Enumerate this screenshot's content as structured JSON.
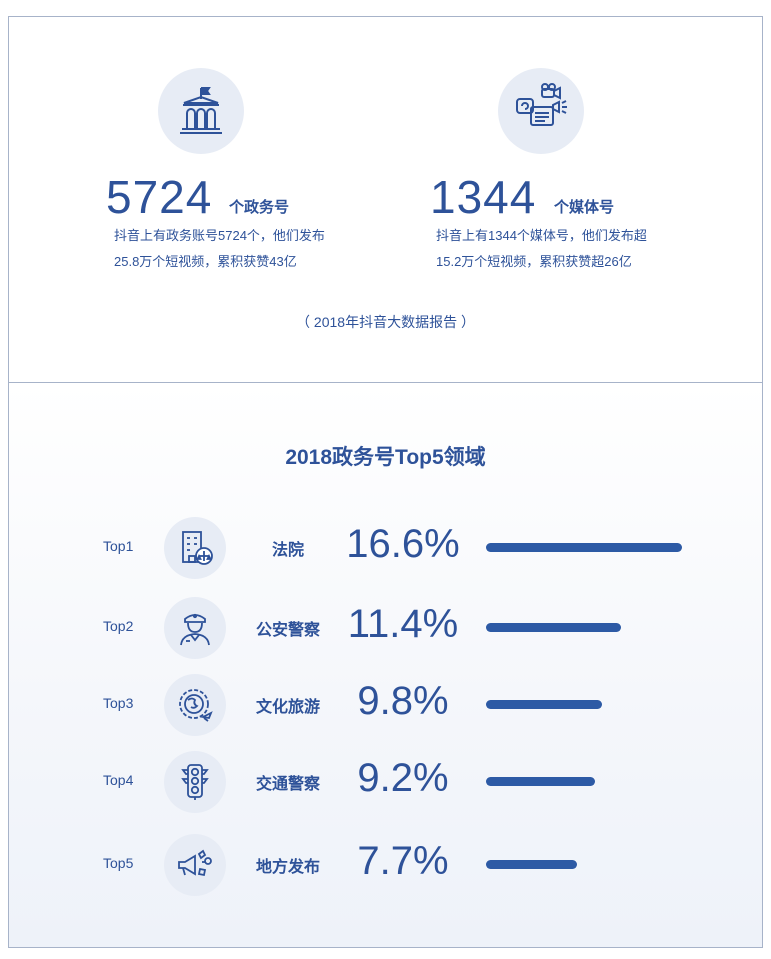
{
  "top": {
    "left": {
      "number": "5724",
      "unit": "个政务号",
      "desc_line1": "抖音上有政务账号5724个，他们发布",
      "desc_line2": "25.8万个短视频，累积获赞43亿",
      "icon": "government-building-icon"
    },
    "right": {
      "number": "1344",
      "unit": "个媒体号",
      "desc_line1": "抖音上有1344个媒体号，他们发布超",
      "desc_line2": "15.2万个短视频，累积获赞超26亿",
      "icon": "media-camera-icon"
    },
    "source": "（ 2018年抖音大数据报告 ）"
  },
  "section_title": "2018政务号Top5领域",
  "chart_data": {
    "type": "bar",
    "orientation": "horizontal",
    "title": "2018政务号Top5领域",
    "ranks": [
      "Top1",
      "Top2",
      "Top3",
      "Top4",
      "Top5"
    ],
    "categories": [
      "法院",
      "公安警察",
      "文化旅游",
      "交通警察",
      "地方发布"
    ],
    "values": [
      16.6,
      11.4,
      9.8,
      9.2,
      7.7
    ],
    "value_labels": [
      "16.6%",
      "11.4%",
      "9.8%",
      "9.2%",
      "7.7%"
    ],
    "icons": [
      "court-building-icon",
      "police-officer-icon",
      "globe-plane-icon",
      "traffic-light-icon",
      "megaphone-icon"
    ],
    "bar_color": "#2d5aa5"
  },
  "colors": {
    "primary": "#2e5299",
    "circle_bg": "#e7ecf5",
    "border": "#a7b3c9"
  }
}
